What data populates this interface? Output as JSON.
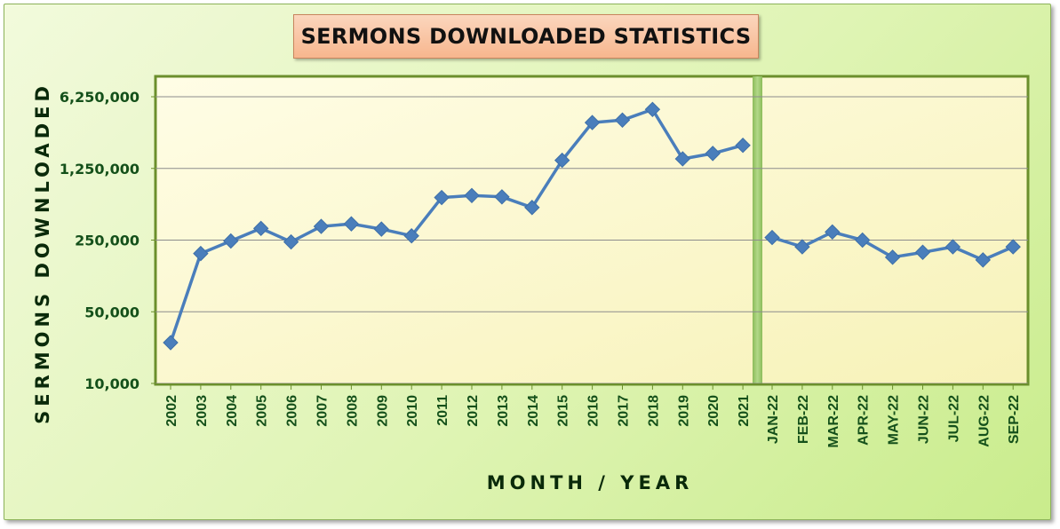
{
  "chart_data": {
    "type": "line",
    "title": "SERMONS DOWNLOADED STATISTICS",
    "xlabel": "MONTH / YEAR",
    "ylabel": "SERMONS DOWNLOADED",
    "y_scale": "log",
    "ylim": [
      10000,
      6250000
    ],
    "y_ticks": [
      10000,
      50000,
      250000,
      1250000,
      6250000
    ],
    "y_tick_labels": [
      "10,000",
      "50,000",
      "250,000",
      "1,250,000",
      "6,250,000"
    ],
    "grid": true,
    "legend": "none",
    "line_color": "#4a7ebb",
    "plot_background": "#fdfbd6",
    "plot_border_color": "#6b8f2c",
    "axis_text_color": "#14501a",
    "panels": [
      {
        "name": "yearly",
        "categories": [
          "2002",
          "2003",
          "2004",
          "2005",
          "2006",
          "2007",
          "2008",
          "2009",
          "2010",
          "2011",
          "2012",
          "2013",
          "2014",
          "2015",
          "2016",
          "2017",
          "2018",
          "2019",
          "2020",
          "2021"
        ],
        "values": [
          25000,
          185000,
          245000,
          325000,
          240000,
          340000,
          360000,
          320000,
          275000,
          650000,
          680000,
          660000,
          520000,
          1500000,
          3500000,
          3700000,
          4700000,
          1550000,
          1750000,
          2100000
        ]
      },
      {
        "name": "monthly",
        "categories": [
          "JAN-22",
          "FEB-22",
          "MAR-22",
          "APR-22",
          "MAY-22",
          "JUN-22",
          "JUL-22",
          "AUG-22",
          "SEP-22"
        ],
        "values": [
          265000,
          215000,
          300000,
          250000,
          170000,
          190000,
          215000,
          160000,
          215000
        ]
      }
    ]
  }
}
